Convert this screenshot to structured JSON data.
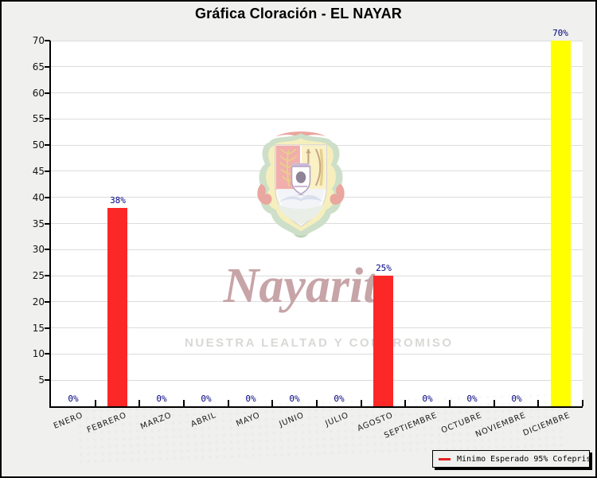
{
  "title": "Gráfica Cloración - EL NAYAR",
  "chart_data": {
    "type": "bar",
    "title": "Gráfica Cloración - EL NAYAR",
    "categories": [
      "ENERO",
      "FEBRERO",
      "MARZO",
      "ABRIL",
      "MAYO",
      "JUNIO",
      "JULIO",
      "AGOSTO",
      "SEPTIEMBRE",
      "OCTUBRE",
      "NOVIEMBRE",
      "DICIEMBRE"
    ],
    "values": [
      0,
      38,
      0,
      0,
      0,
      0,
      0,
      25,
      0,
      0,
      0,
      70
    ],
    "value_labels": [
      "0%",
      "38%",
      "0%",
      "0%",
      "0%",
      "0%",
      "0%",
      "25%",
      "0%",
      "0%",
      "0%",
      "70%"
    ],
    "bar_colors": [
      "#fc2828",
      "#fc2828",
      "#fc2828",
      "#fc2828",
      "#fc2828",
      "#fc2828",
      "#fc2828",
      "#fc2828",
      "#fc2828",
      "#fc2828",
      "#fc2828",
      "#ffff00"
    ],
    "xlabel": "",
    "ylabel": "",
    "ylim": [
      0,
      70
    ],
    "yticks": [
      5,
      10,
      15,
      20,
      25,
      30,
      35,
      40,
      45,
      50,
      55,
      60,
      65,
      70
    ],
    "grid": true,
    "legend": {
      "position": "bottom-right",
      "entries": [
        {
          "label": "Minimo Esperado 95% Cofepris",
          "swatch_color": "#e42222",
          "swatch_type": "line"
        }
      ]
    }
  },
  "legend": {
    "label": "Minimo Esperado 95% Cofepris",
    "swatch_color": "#e42222"
  },
  "watermark": {
    "name": "Nayarit",
    "slogan": "NUESTRA LEALTAD Y COMPROMISO"
  },
  "colors": {
    "background": "#f0f0ee",
    "plot_background": "#ffffff",
    "gridline": "#dcdcdc",
    "axis": "#000000",
    "bar_red": "#fc2828",
    "bar_yellow": "#ffff00",
    "value_label": "#000080",
    "title": "#000000"
  }
}
